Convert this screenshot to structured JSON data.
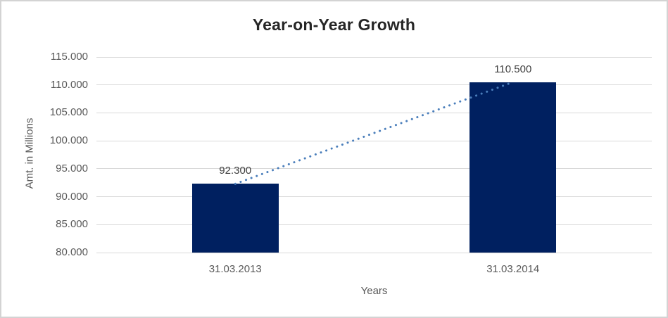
{
  "chart_data": {
    "type": "bar",
    "title": "Year-on-Year Growth",
    "xlabel": "Years",
    "ylabel": "Amt. in Millions",
    "categories": [
      "31.03.2013",
      "31.03.2014"
    ],
    "values": [
      92300,
      110500
    ],
    "data_labels": [
      "92.300",
      "110.500"
    ],
    "y_ticks": [
      {
        "value": 80000,
        "label": "80.000"
      },
      {
        "value": 85000,
        "label": "85.000"
      },
      {
        "value": 90000,
        "label": "90.000"
      },
      {
        "value": 95000,
        "label": "95.000"
      },
      {
        "value": 100000,
        "label": "100.000"
      },
      {
        "value": 105000,
        "label": "105.000"
      },
      {
        "value": 110000,
        "label": "110.000"
      },
      {
        "value": 115000,
        "label": "115.000"
      }
    ],
    "ylim": [
      80000,
      115000
    ],
    "grid": true,
    "legend_position": "none",
    "colors": {
      "bar": "#002060",
      "trendline": "#4A7EBB",
      "gridline": "#D9D9D9",
      "title_text": "#262626",
      "axis_text": "#595959",
      "data_label_text": "#404040",
      "chart_border": "#D3D3D3"
    },
    "trendline": {
      "style": "dotted",
      "from_label": "92.300",
      "to_label": "110.500"
    }
  }
}
